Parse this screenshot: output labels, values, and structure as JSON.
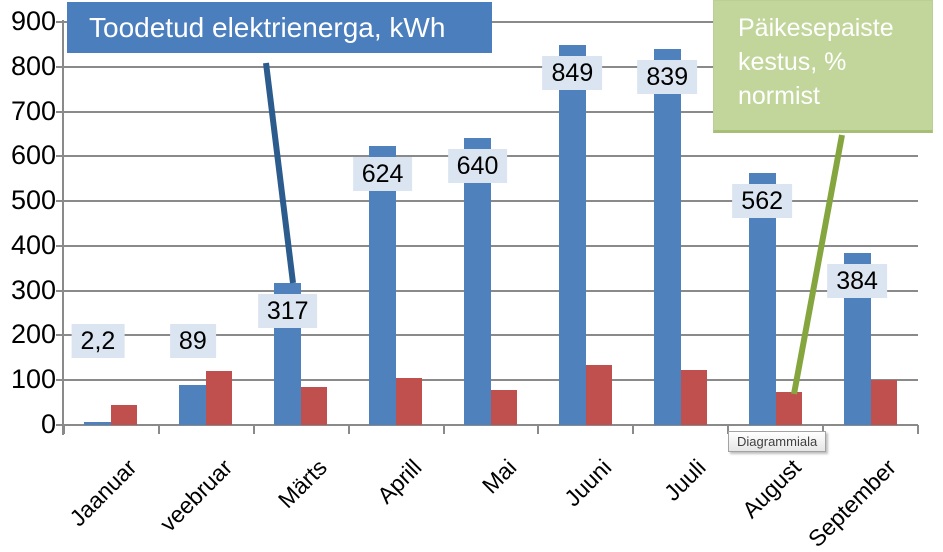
{
  "chart_data": {
    "type": "bar",
    "categories": [
      "Jaanuar",
      "veebruar",
      "Märts",
      "Aprill",
      "Mai",
      "Juuni",
      "Juuli",
      "August",
      "September"
    ],
    "series": [
      {
        "name": "Toodetud elektrienerga, kWh",
        "color": "#4f81bd",
        "values": [
          2.2,
          89,
          317,
          624,
          640,
          849,
          839,
          562,
          384
        ],
        "data_labels": [
          "2,2",
          "89",
          "317",
          "624",
          "640",
          "849",
          "839",
          "562",
          "384"
        ]
      },
      {
        "name": "Päikesepaiste kestus, % normist",
        "color": "#c0504d",
        "values": [
          45,
          120,
          85,
          105,
          78,
          135,
          122,
          74,
          100
        ],
        "data_labels": []
      }
    ],
    "ylim": [
      0,
      900
    ],
    "ytick_step": 100,
    "ytick_labels": [
      "0",
      "100",
      "200",
      "300",
      "400",
      "500",
      "600",
      "700",
      "800",
      "900"
    ],
    "xlabel": "",
    "ylabel": "",
    "grid": "horizontal",
    "legend_position": "floating-callout-boxes"
  },
  "callouts": {
    "toodetud": {
      "label": "Toodetud elektrienerga, kWh",
      "bg": "#4b7ebd",
      "text_color": "#ffffff",
      "leader_color": "#2b5c8d"
    },
    "paikesepaiste": {
      "line1": "Päikesepaiste",
      "line2": "kestus, %",
      "line3": "normist",
      "bg": "#c2d69b",
      "text_color": "#ffffff",
      "leader_color": "#85a63f"
    }
  },
  "tooltip": {
    "label": "Diagrammiala"
  },
  "colors": {
    "gridline": "#8a8a8a",
    "data_label_bg": "#dbe5f1",
    "background": "#ffffff"
  }
}
